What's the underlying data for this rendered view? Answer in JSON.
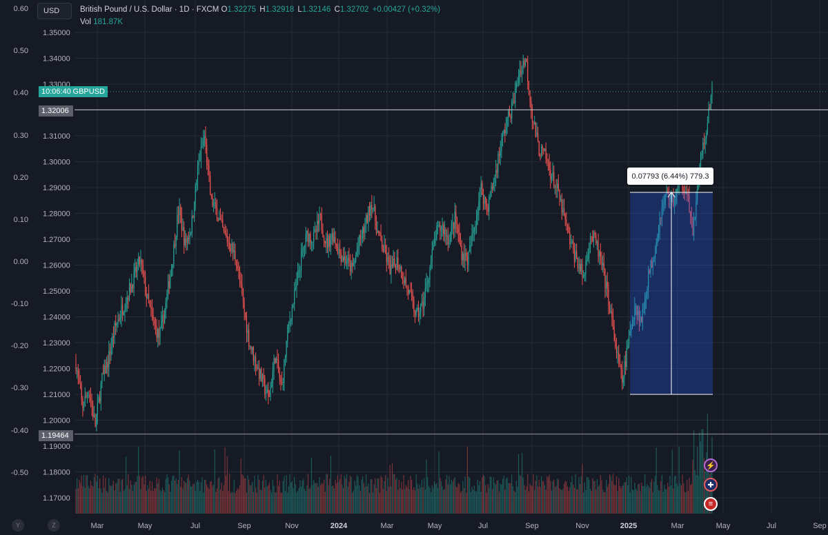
{
  "header": {
    "currency": "USD",
    "symbol_desc": "British Pound / U.S. Dollar · 1D · FXCM",
    "open_key": "O",
    "open_val": "1.32275",
    "high_key": "H",
    "high_val": "1.32918",
    "low_key": "L",
    "low_val": "1.32146",
    "close_key": "C",
    "close_val": "1.32702",
    "change": "+0.00427 (+0.32%)",
    "vol_key": "Vol",
    "vol_val": "181.87K"
  },
  "left_axis_labels": [
    "0.60",
    "0.50",
    "0.40",
    "0.30",
    "0.20",
    "0.10",
    "0.00",
    "-0.10",
    "-0.20",
    "-0.30",
    "-0.40",
    "-0.50"
  ],
  "price_axis_labels": [
    "1.35000",
    "1.34000",
    "1.33000",
    "1.31000",
    "1.30000",
    "1.29000",
    "1.28000",
    "1.27000",
    "1.26000",
    "1.25000",
    "1.24000",
    "1.23000",
    "1.22000",
    "1.21000",
    "1.20000",
    "1.19000",
    "1.18000",
    "1.17000"
  ],
  "time_axis_labels": [
    "Mar",
    "May",
    "Jul",
    "Sep",
    "Nov",
    "2024",
    "Mar",
    "May",
    "Jul",
    "Sep",
    "Nov",
    "2025",
    "Mar",
    "May",
    "Jul",
    "Sep"
  ],
  "countdown": {
    "time": "10:06:40",
    "symbol": "GBPUSD"
  },
  "hlines": [
    "1.32006",
    "1.19464"
  ],
  "measure_tooltip": "0.07793 (6.44%) 779.3",
  "bottom_buttons": [
    "Y",
    "Z"
  ],
  "events": [
    "lightning-event",
    "uk-flag-event",
    "us-flag-event"
  ],
  "colors": {
    "bg": "#161a25",
    "up": "#26a69a",
    "down": "#ef5350",
    "grid": "#262a35",
    "measure": "#2962ff"
  },
  "chart_data": {
    "type": "candlestick",
    "price_range": [
      1.165,
      1.357
    ],
    "period_start": "2023-02",
    "period_end": "2025-04",
    "path_close": [
      1.222,
      1.205,
      1.212,
      1.198,
      1.215,
      1.223,
      1.235,
      1.242,
      1.248,
      1.255,
      1.262,
      1.248,
      1.238,
      1.232,
      1.245,
      1.262,
      1.282,
      1.268,
      1.275,
      1.298,
      1.31,
      1.285,
      1.28,
      1.272,
      1.268,
      1.262,
      1.245,
      1.23,
      1.222,
      1.215,
      1.208,
      1.225,
      1.212,
      1.235,
      1.248,
      1.262,
      1.272,
      1.27,
      1.278,
      1.268,
      1.272,
      1.265,
      1.262,
      1.258,
      1.268,
      1.275,
      1.285,
      1.272,
      1.265,
      1.258,
      1.262,
      1.255,
      1.248,
      1.24,
      1.245,
      1.258,
      1.272,
      1.275,
      1.27,
      1.278,
      1.265,
      1.262,
      1.275,
      1.29,
      1.282,
      1.292,
      1.305,
      1.315,
      1.322,
      1.335,
      1.34,
      1.318,
      1.305,
      1.302,
      1.295,
      1.288,
      1.278,
      1.268,
      1.262,
      1.255,
      1.272,
      1.268,
      1.258,
      1.245,
      1.228,
      1.215,
      1.23,
      1.245,
      1.238,
      1.255,
      1.265,
      1.28,
      1.288,
      1.285,
      1.292,
      1.29,
      1.272,
      1.298,
      1.312,
      1.327
    ]
  }
}
